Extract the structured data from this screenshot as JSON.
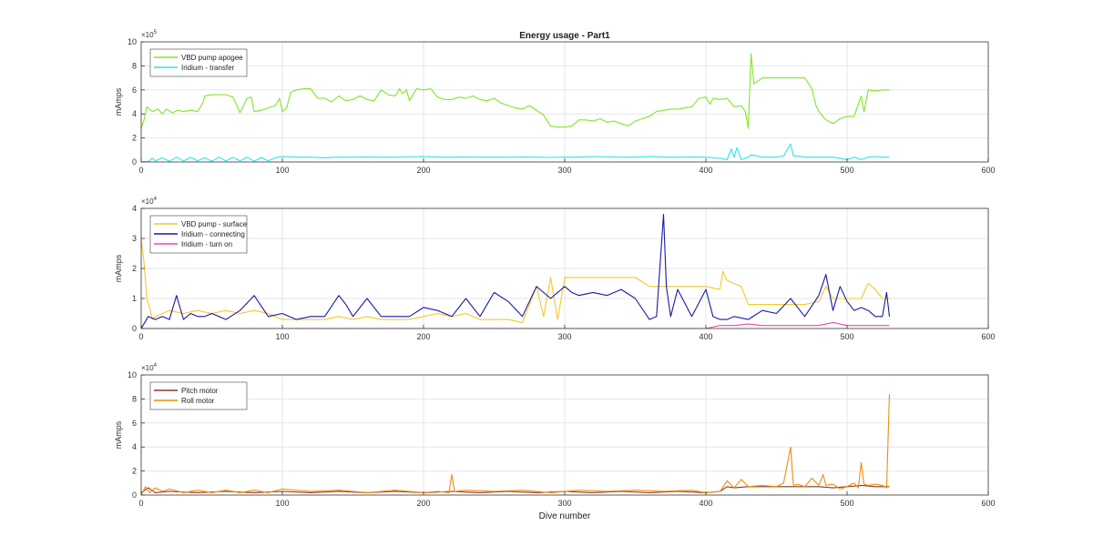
{
  "figure": {
    "title": "Energy usage - Part1",
    "xlabel": "Dive number"
  },
  "colors": {
    "vbd_apogee": "#7fe62a",
    "iridium_transfer": "#2ee6e6",
    "vbd_surface": "#f2c928",
    "iridium_connecting": "#1a1aa6",
    "iridium_turn_on": "#e64ca6",
    "pitch_motor": "#8c3a1a",
    "roll_motor": "#f08c10",
    "grid": "#e6e6e6",
    "axis": "#333333"
  },
  "chart_data": [
    {
      "type": "line",
      "title": "Energy usage - Part1",
      "xlabel": "",
      "ylabel": "mAmps",
      "xlim": [
        0,
        600
      ],
      "ylim": [
        0,
        1000000
      ],
      "xticks": [
        0,
        100,
        200,
        300,
        400,
        500,
        600
      ],
      "yticks": [
        0,
        200000,
        400000,
        600000,
        800000,
        1000000
      ],
      "ytick_labels": [
        "0",
        "2",
        "4",
        "6",
        "8",
        "10"
      ],
      "exponent": "5",
      "grid": true,
      "legend_position": "top-left",
      "series": [
        {
          "name": "VBD pump apogee",
          "color_key": "vbd_apogee",
          "x": [
            0,
            2,
            4,
            8,
            12,
            15,
            18,
            22,
            26,
            30,
            35,
            40,
            44,
            45,
            50,
            55,
            60,
            65,
            70,
            75,
            78,
            80,
            85,
            90,
            95,
            98,
            100,
            103,
            106,
            110,
            115,
            120,
            125,
            130,
            135,
            140,
            145,
            150,
            155,
            160,
            165,
            170,
            175,
            180,
            183,
            185,
            188,
            190,
            195,
            200,
            205,
            210,
            215,
            220,
            225,
            230,
            235,
            240,
            245,
            250,
            255,
            260,
            265,
            270,
            275,
            280,
            285,
            290,
            295,
            300,
            305,
            310,
            315,
            320,
            325,
            330,
            335,
            340,
            345,
            350,
            355,
            360,
            365,
            370,
            375,
            380,
            385,
            390,
            395,
            400,
            403,
            405,
            410,
            415,
            420,
            425,
            428,
            430,
            432,
            434,
            440,
            450,
            460,
            470,
            475,
            478,
            480,
            485,
            490,
            495,
            500,
            505,
            510,
            512,
            515,
            520,
            525,
            530
          ],
          "y": [
            280000,
            350000,
            460000,
            420000,
            440000,
            400000,
            440000,
            410000,
            430000,
            420000,
            430000,
            420000,
            500000,
            550000,
            560000,
            560000,
            560000,
            540000,
            410000,
            530000,
            540000,
            420000,
            430000,
            450000,
            470000,
            530000,
            420000,
            450000,
            580000,
            600000,
            610000,
            610000,
            530000,
            530000,
            500000,
            550000,
            510000,
            520000,
            550000,
            520000,
            510000,
            600000,
            560000,
            550000,
            610000,
            570000,
            600000,
            510000,
            610000,
            600000,
            610000,
            540000,
            520000,
            520000,
            540000,
            530000,
            550000,
            520000,
            510000,
            530000,
            490000,
            470000,
            450000,
            440000,
            470000,
            430000,
            390000,
            300000,
            290000,
            290000,
            300000,
            350000,
            350000,
            340000,
            360000,
            330000,
            340000,
            320000,
            300000,
            340000,
            360000,
            380000,
            420000,
            430000,
            440000,
            440000,
            450000,
            460000,
            530000,
            540000,
            480000,
            530000,
            520000,
            530000,
            460000,
            470000,
            420000,
            280000,
            900000,
            650000,
            700000,
            700000,
            700000,
            700000,
            610000,
            470000,
            420000,
            350000,
            320000,
            360000,
            380000,
            380000,
            550000,
            420000,
            600000,
            590000,
            600000,
            600000
          ]
        },
        {
          "name": "Iridium - transfer",
          "color_key": "iridium_transfer",
          "x": [
            0,
            5,
            8,
            10,
            15,
            20,
            25,
            30,
            35,
            40,
            45,
            50,
            55,
            60,
            65,
            70,
            75,
            80,
            85,
            90,
            95,
            100,
            110,
            120,
            130,
            140,
            150,
            160,
            170,
            180,
            190,
            200,
            210,
            220,
            230,
            240,
            250,
            260,
            270,
            280,
            290,
            300,
            310,
            320,
            330,
            340,
            350,
            360,
            370,
            380,
            390,
            400,
            410,
            415,
            418,
            420,
            422,
            425,
            430,
            432,
            440,
            450,
            455,
            460,
            462,
            465,
            470,
            480,
            490,
            500,
            505,
            510,
            515,
            520,
            525,
            530
          ],
          "y": [
            0,
            5000,
            30000,
            10000,
            35000,
            5000,
            40000,
            8000,
            38000,
            10000,
            35000,
            5000,
            40000,
            8000,
            38000,
            10000,
            40000,
            5000,
            38000,
            10000,
            35000,
            45000,
            40000,
            40000,
            35000,
            40000,
            40000,
            42000,
            40000,
            40000,
            42000,
            45000,
            40000,
            40000,
            42000,
            40000,
            40000,
            40000,
            42000,
            40000,
            38000,
            40000,
            40000,
            45000,
            42000,
            40000,
            40000,
            45000,
            40000,
            40000,
            42000,
            40000,
            30000,
            20000,
            110000,
            40000,
            120000,
            20000,
            40000,
            60000,
            40000,
            40000,
            50000,
            150000,
            50000,
            50000,
            40000,
            40000,
            40000,
            20000,
            40000,
            20000,
            40000,
            45000,
            40000,
            40000
          ]
        }
      ]
    },
    {
      "type": "line",
      "title": "",
      "xlabel": "",
      "ylabel": "mAmps",
      "xlim": [
        0,
        600
      ],
      "ylim": [
        0,
        40000
      ],
      "xticks": [
        0,
        100,
        200,
        300,
        400,
        500,
        600
      ],
      "yticks": [
        0,
        10000,
        20000,
        30000,
        40000
      ],
      "ytick_labels": [
        "0",
        "1",
        "2",
        "3",
        "4"
      ],
      "exponent": "4",
      "grid": true,
      "legend_position": "top-left",
      "series": [
        {
          "name": "VBD pump - surface",
          "color_key": "vbd_surface",
          "x": [
            0,
            2,
            4,
            6,
            8,
            10,
            20,
            30,
            40,
            50,
            60,
            70,
            80,
            90,
            100,
            110,
            120,
            130,
            140,
            150,
            160,
            170,
            180,
            190,
            200,
            210,
            220,
            230,
            240,
            250,
            260,
            270,
            275,
            280,
            285,
            290,
            295,
            300,
            310,
            320,
            330,
            340,
            350,
            360,
            370,
            380,
            390,
            400,
            410,
            412,
            415,
            420,
            425,
            430,
            440,
            450,
            460,
            470,
            480,
            485,
            490,
            495,
            500,
            505,
            510,
            515,
            520,
            525,
            530
          ],
          "y": [
            30000,
            22000,
            10000,
            7000,
            3000,
            4000,
            6000,
            5000,
            6000,
            5000,
            6000,
            5000,
            6000,
            5000,
            3000,
            3000,
            3000,
            3000,
            4000,
            3000,
            4000,
            3000,
            3000,
            3000,
            4000,
            5000,
            4000,
            5000,
            3000,
            3000,
            3000,
            2000,
            8000,
            14000,
            4000,
            17000,
            3000,
            17000,
            17000,
            17000,
            17000,
            17000,
            17000,
            14000,
            14000,
            14000,
            14000,
            14000,
            13000,
            19000,
            16000,
            15000,
            14000,
            8000,
            8000,
            8000,
            8000,
            8000,
            9000,
            14000,
            10000,
            10000,
            10000,
            10000,
            10000,
            15000,
            13000,
            10000,
            10000
          ]
        },
        {
          "name": "Iridium - connecting",
          "color_key": "iridium_connecting",
          "x": [
            0,
            5,
            10,
            15,
            20,
            25,
            30,
            35,
            40,
            45,
            50,
            55,
            60,
            70,
            80,
            90,
            100,
            110,
            120,
            130,
            140,
            145,
            150,
            160,
            170,
            180,
            190,
            200,
            210,
            220,
            230,
            240,
            250,
            260,
            270,
            280,
            290,
            300,
            305,
            310,
            320,
            330,
            340,
            350,
            360,
            365,
            370,
            372,
            375,
            380,
            390,
            400,
            405,
            410,
            415,
            420,
            430,
            440,
            450,
            460,
            470,
            480,
            485,
            490,
            495,
            500,
            505,
            510,
            515,
            520,
            525,
            528,
            530
          ],
          "y": [
            0,
            4000,
            3000,
            4000,
            3000,
            11000,
            3000,
            5000,
            4000,
            4000,
            5000,
            4000,
            3000,
            6000,
            11000,
            4000,
            5000,
            3000,
            4000,
            4000,
            11000,
            8000,
            4000,
            10000,
            4000,
            4000,
            4000,
            7000,
            6000,
            4000,
            10000,
            4000,
            12000,
            9000,
            4000,
            14000,
            10000,
            14000,
            12000,
            11000,
            12000,
            11000,
            13000,
            10000,
            3000,
            4000,
            38000,
            14000,
            4000,
            13000,
            4000,
            13000,
            4000,
            3000,
            3000,
            4000,
            3000,
            6000,
            5000,
            10000,
            4000,
            11000,
            18000,
            6000,
            14000,
            9000,
            6000,
            7000,
            6000,
            4000,
            4000,
            12000,
            4000
          ]
        },
        {
          "name": "Iridium - turn on",
          "color_key": "iridium_turn_on",
          "x": [
            0,
            50,
            100,
            150,
            200,
            250,
            300,
            350,
            400,
            410,
            415,
            420,
            430,
            440,
            460,
            470,
            480,
            490,
            500,
            510,
            520,
            530
          ],
          "y": [
            0,
            0,
            0,
            0,
            0,
            0,
            0,
            0,
            0,
            1000,
            1000,
            1000,
            1500,
            1000,
            1000,
            1000,
            1000,
            2000,
            1000,
            1000,
            1000,
            1000
          ]
        }
      ]
    },
    {
      "type": "line",
      "title": "",
      "xlabel": "Dive number",
      "ylabel": "mAmps",
      "xlim": [
        0,
        600
      ],
      "ylim": [
        0,
        100000
      ],
      "xticks": [
        0,
        100,
        200,
        300,
        400,
        500,
        600
      ],
      "yticks": [
        0,
        20000,
        40000,
        60000,
        80000,
        100000
      ],
      "ytick_labels": [
        "0",
        "2",
        "4",
        "6",
        "8",
        "10"
      ],
      "exponent": "4",
      "grid": true,
      "legend_position": "top-left",
      "series": [
        {
          "name": "Pitch motor",
          "color_key": "pitch_motor",
          "x": [
            0,
            5,
            10,
            20,
            40,
            60,
            80,
            100,
            120,
            140,
            160,
            180,
            200,
            220,
            240,
            260,
            280,
            300,
            320,
            340,
            360,
            380,
            400,
            410,
            415,
            420,
            430,
            440,
            450,
            460,
            470,
            480,
            490,
            500,
            510,
            520,
            530
          ],
          "y": [
            2000,
            6000,
            2000,
            3000,
            2000,
            3000,
            2000,
            3000,
            2000,
            3000,
            2000,
            3000,
            2000,
            3000,
            2000,
            3000,
            2000,
            3000,
            2000,
            3000,
            2000,
            3000,
            2000,
            3000,
            7000,
            6000,
            7000,
            7000,
            7000,
            7000,
            7000,
            7000,
            6000,
            7000,
            8000,
            7000,
            7000
          ]
        },
        {
          "name": "Roll motor",
          "color_key": "roll_motor",
          "x": [
            0,
            3,
            6,
            10,
            15,
            20,
            30,
            40,
            50,
            60,
            70,
            80,
            90,
            100,
            120,
            140,
            160,
            180,
            200,
            210,
            218,
            220,
            222,
            230,
            250,
            270,
            290,
            310,
            330,
            350,
            370,
            390,
            400,
            410,
            413,
            415,
            420,
            425,
            430,
            440,
            450,
            455,
            460,
            462,
            465,
            470,
            475,
            480,
            483,
            485,
            490,
            495,
            500,
            505,
            508,
            510,
            512,
            515,
            520,
            525,
            528,
            530
          ],
          "y": [
            0,
            7000,
            2000,
            6000,
            3000,
            5000,
            2000,
            4000,
            2000,
            4000,
            2000,
            4000,
            2000,
            5000,
            3000,
            4000,
            2000,
            4000,
            2000,
            3000,
            2000,
            17000,
            3000,
            4000,
            3000,
            4000,
            2000,
            4000,
            3000,
            4000,
            3000,
            4000,
            2000,
            3000,
            8000,
            12000,
            6000,
            13000,
            7000,
            8000,
            7000,
            10000,
            40000,
            8000,
            9000,
            7000,
            14000,
            8000,
            17000,
            8000,
            9000,
            5000,
            7000,
            10000,
            6000,
            27000,
            9000,
            8000,
            9000,
            8000,
            6000,
            84000
          ]
        }
      ]
    }
  ]
}
